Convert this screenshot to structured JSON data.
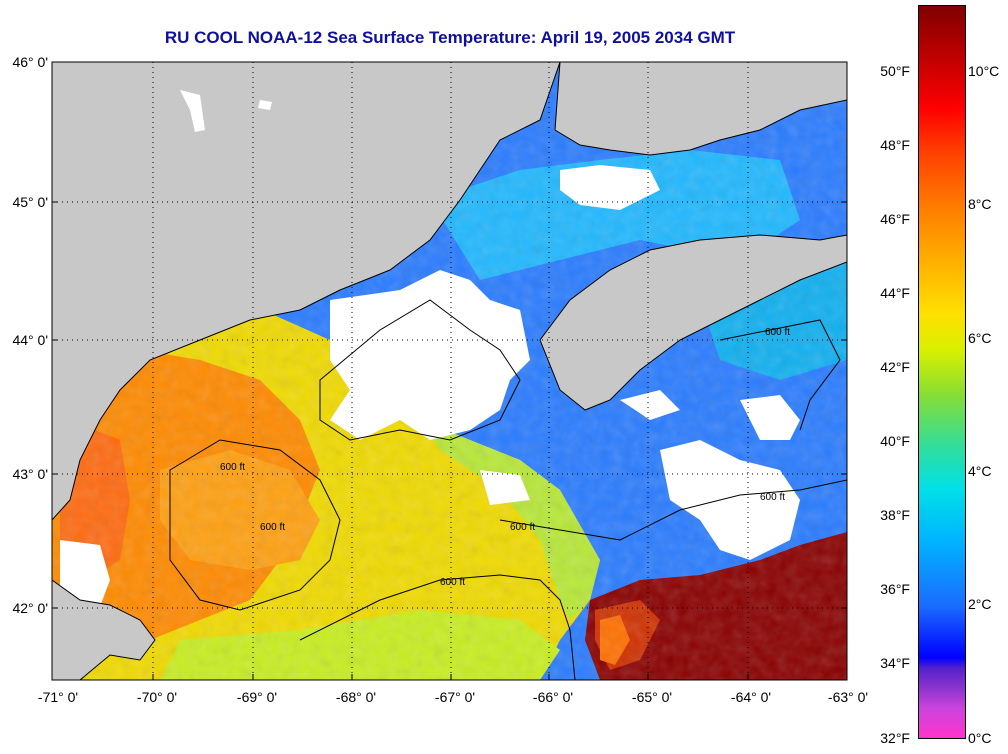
{
  "title": "RU COOL  NOAA-12  Sea Surface Temperature:  April 19, 2005 2034 GMT",
  "latitude_labels": [
    "46° 0'",
    "45° 0'",
    "44° 0'",
    "43° 0'",
    "42° 0'"
  ],
  "longitude_labels": [
    "-71° 0'",
    "-70° 0'",
    "-69° 0'",
    "-68° 0'",
    "-67° 0'",
    "-66° 0'",
    "-65° 0'",
    "-64° 0'",
    "-63° 0'"
  ],
  "contour_label": "600 ft",
  "colorbar": {
    "fahrenheit_labels": [
      "50°F",
      "48°F",
      "46°F",
      "44°F",
      "42°F",
      "40°F",
      "38°F",
      "36°F",
      "34°F",
      "32°F"
    ],
    "celsius_labels": [
      "10°C",
      "8°C",
      "6°C",
      "4°C",
      "2°C",
      "0°C"
    ]
  },
  "colors": {
    "title": "#1010a0",
    "land": "#c8c8c8",
    "cloud": "#ffffff",
    "warm_coast": "#ff7a00",
    "mid_gulf": "#f2d800",
    "cold_shelf": "#2080ff",
    "gulf_stream": "#800000"
  }
}
